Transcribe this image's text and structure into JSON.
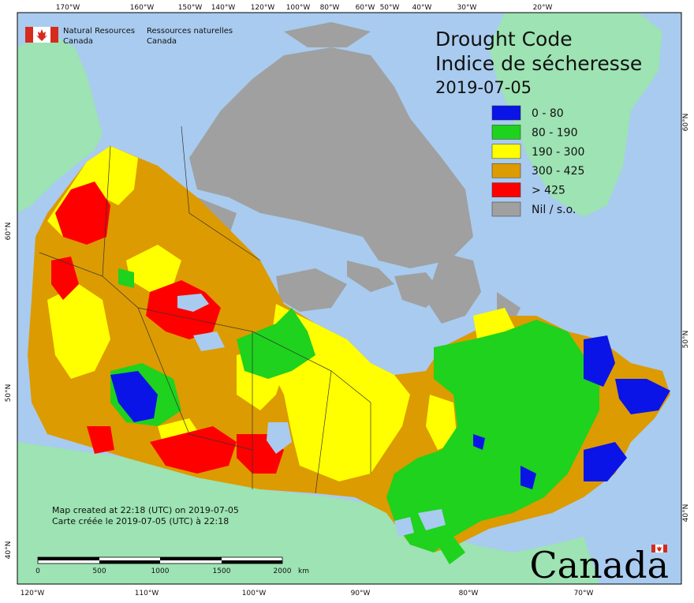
{
  "agency": {
    "name_en_line1": "Natural Resources",
    "name_en_line2": "Canada",
    "name_fr_line1": "Ressources naturelles",
    "name_fr_line2": "Canada"
  },
  "title": {
    "line1": "Drought Code",
    "line2": "Indice de sécheresse",
    "date": "2019-07-05"
  },
  "legend": [
    {
      "label": "0 - 80",
      "color": "#0a14e6"
    },
    {
      "label": "80 - 190",
      "color": "#1ed21e"
    },
    {
      "label": "190 - 300",
      "color": "#ffff00"
    },
    {
      "label": "300 - 425",
      "color": "#dc9b00"
    },
    {
      "label": "> 425",
      "color": "#ff0000"
    },
    {
      "label": "Nil / s.o.",
      "color": "#a0a0a0"
    }
  ],
  "credit": {
    "line1": "Map created at 22:18 (UTC) on 2019-07-05",
    "line2": "Carte créée le 2019-07-05 (UTC) à 22:18"
  },
  "wordmark": "Canada",
  "scale_bar": {
    "ticks": [
      "0",
      "500",
      "1000",
      "1500",
      "2000"
    ],
    "unit": "km"
  },
  "graticule": {
    "top": [
      "170°W",
      "160°W",
      "150°W",
      "140°W",
      "120°W",
      "100°W",
      "80°W",
      "60°W",
      "50°W",
      "40°W",
      "30°W",
      "20°W"
    ],
    "bottom": [
      "120°W",
      "110°W",
      "100°W",
      "90°W",
      "80°W",
      "70°W"
    ],
    "left": [
      "60°N",
      "50°N",
      "40°N"
    ],
    "right": [
      "60°N",
      "50°N",
      "40°N"
    ]
  },
  "colors": {
    "ocean": "#a9cbef",
    "land_other": "#9de3b3",
    "nodata": "#a0a0a0",
    "frame": "#000000"
  }
}
